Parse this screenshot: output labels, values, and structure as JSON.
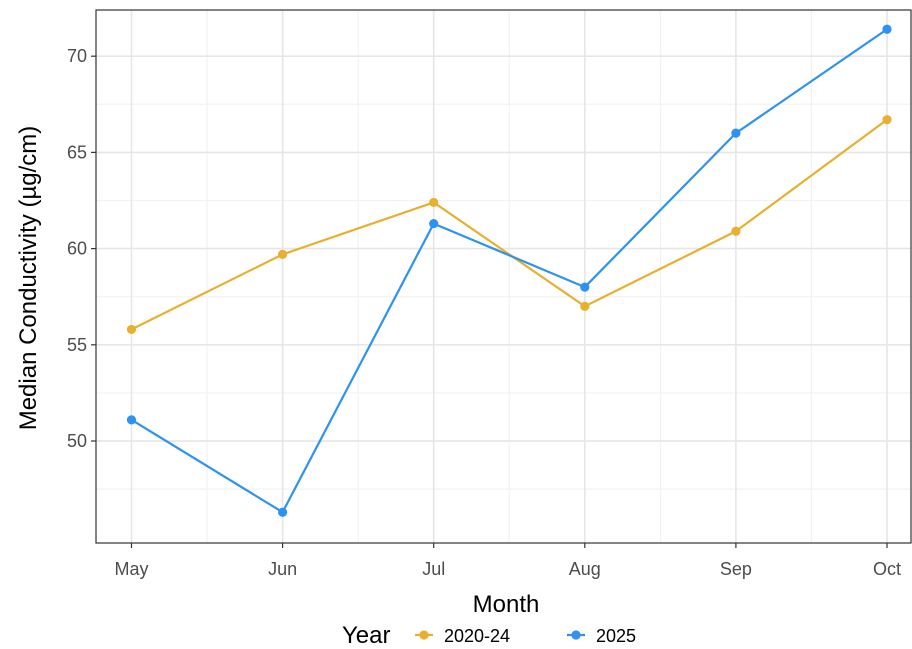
{
  "chart_data": {
    "type": "line",
    "title": "",
    "xlabel": "Month",
    "ylabel": "Median Conductivity (µg/cm)",
    "categories": [
      "May",
      "Jun",
      "Jul",
      "Aug",
      "Sep",
      "Oct"
    ],
    "y_ticks": [
      50,
      55,
      60,
      65,
      70
    ],
    "ylim": [
      44.7,
      72.4
    ],
    "grid": true,
    "legend": {
      "title": "Year",
      "placement": "bottom",
      "entries": [
        "2020-24",
        "2025"
      ]
    },
    "series": [
      {
        "name": "2020-24",
        "color": "#E8B030",
        "values": [
          55.8,
          59.7,
          62.4,
          57.0,
          60.9,
          66.7
        ]
      },
      {
        "name": "2025",
        "color": "#2E93EE",
        "values": [
          51.1,
          46.3,
          61.3,
          58.0,
          66.0,
          71.4
        ]
      }
    ]
  }
}
